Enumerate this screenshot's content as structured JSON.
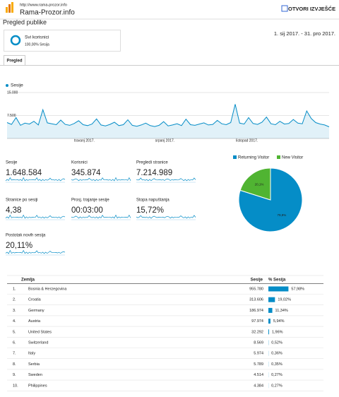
{
  "header": {
    "url": "http://www.rama-prozor.info",
    "site": "Rama-Prozor.info",
    "action": "OTVORI IZVJEŠĆE"
  },
  "title": "Pregled publike",
  "segment": {
    "name": "Svi korisnici",
    "detail": "100,00% Sesija"
  },
  "date_range": "1. sij 2017. - 31. pro 2017.",
  "tab": "Pregled",
  "sessions_chart": {
    "type": "line",
    "series": [
      {
        "name": "Sesije",
        "color": "#058dc7",
        "values": [
          5200,
          4600,
          6800,
          4300,
          5000,
          4700,
          5600,
          4400,
          9400,
          5100,
          4800,
          4500,
          6000,
          4600,
          4300,
          4900,
          5800,
          4500,
          4200,
          4700,
          6400,
          4400,
          4100,
          4600,
          5300,
          4200,
          4500,
          6100,
          4300,
          4000,
          4400,
          5000,
          4200,
          3900,
          4300,
          5500,
          4100,
          4400,
          4800,
          4200,
          6300,
          4500,
          4300,
          4700,
          5100,
          4400,
          4600,
          5900,
          4800,
          4500,
          5200,
          11200,
          5000,
          4700,
          6800,
          4900,
          4600,
          5300,
          7000,
          4800,
          4500,
          5600,
          4700,
          4900,
          6200,
          5000,
          4800,
          9000,
          6500,
          5200,
          4700,
          4400,
          3800
        ]
      }
    ],
    "ylim": [
      0,
      15000
    ],
    "yticks": [
      {
        "value": 15000,
        "label": "15.000"
      },
      {
        "value": 7500,
        "label": "7.500"
      }
    ],
    "x_labels": [
      "travanj 2017.",
      "srpanj 2017.",
      "listopad 2017."
    ]
  },
  "metrics": [
    {
      "label": "Sesije",
      "value": "1.648.584"
    },
    {
      "label": "Korisnici",
      "value": "345.874"
    },
    {
      "label": "Pregledi stranice",
      "value": "7.214.989"
    },
    {
      "label": "Stranice po sesiji",
      "value": "4,38"
    },
    {
      "label": "Prosj. trajanje sesije",
      "value": "00:03:00"
    },
    {
      "label": "Stopa napuštanja",
      "value": "15,72%"
    },
    {
      "label": "Postotak novih sesija",
      "value": "20,11%"
    }
  ],
  "visitor_chart": {
    "type": "pie",
    "categories": [
      "Returning Visitor",
      "New Visitor"
    ],
    "values": [
      79.9,
      20.1
    ],
    "value_labels": [
      "79,9%",
      "20,1%"
    ],
    "colors": [
      "#058dc7",
      "#50b432"
    ]
  },
  "table": {
    "header": [
      "Zemlja",
      "Sesije",
      "% Sesija"
    ],
    "rows": [
      {
        "rank": "1.",
        "country": "Bosnia & Herzegovina",
        "sessions": "955.780",
        "share": {
          "value": 57.98,
          "label": "57,98%"
        }
      },
      {
        "rank": "2.",
        "country": "Croatia",
        "sessions": "313.606",
        "share": {
          "value": 19.02,
          "label": "19,02%"
        }
      },
      {
        "rank": "3.",
        "country": "Germany",
        "sessions": "186.974",
        "share": {
          "value": 11.34,
          "label": "11,34%"
        }
      },
      {
        "rank": "4.",
        "country": "Austria",
        "sessions": "97.974",
        "share": {
          "value": 5.94,
          "label": "5,94%"
        }
      },
      {
        "rank": "5.",
        "country": "United States",
        "sessions": "32.292",
        "share": {
          "value": 1.96,
          "label": "1,96%"
        }
      },
      {
        "rank": "6.",
        "country": "Switzerland",
        "sessions": "8.569",
        "share": {
          "value": 0.52,
          "label": "0,52%"
        }
      },
      {
        "rank": "7.",
        "country": "Italy",
        "sessions": "5.974",
        "share": {
          "value": 0.36,
          "label": "0,36%"
        }
      },
      {
        "rank": "8.",
        "country": "Serbia",
        "sessions": "5.789",
        "share": {
          "value": 0.35,
          "label": "0,35%"
        }
      },
      {
        "rank": "9.",
        "country": "Sweden",
        "sessions": "4.514",
        "share": {
          "value": 0.27,
          "label": "0,27%"
        }
      },
      {
        "rank": "10.",
        "country": "Philippines",
        "sessions": "4.384",
        "share": {
          "value": 0.27,
          "label": "0,27%"
        }
      }
    ]
  }
}
